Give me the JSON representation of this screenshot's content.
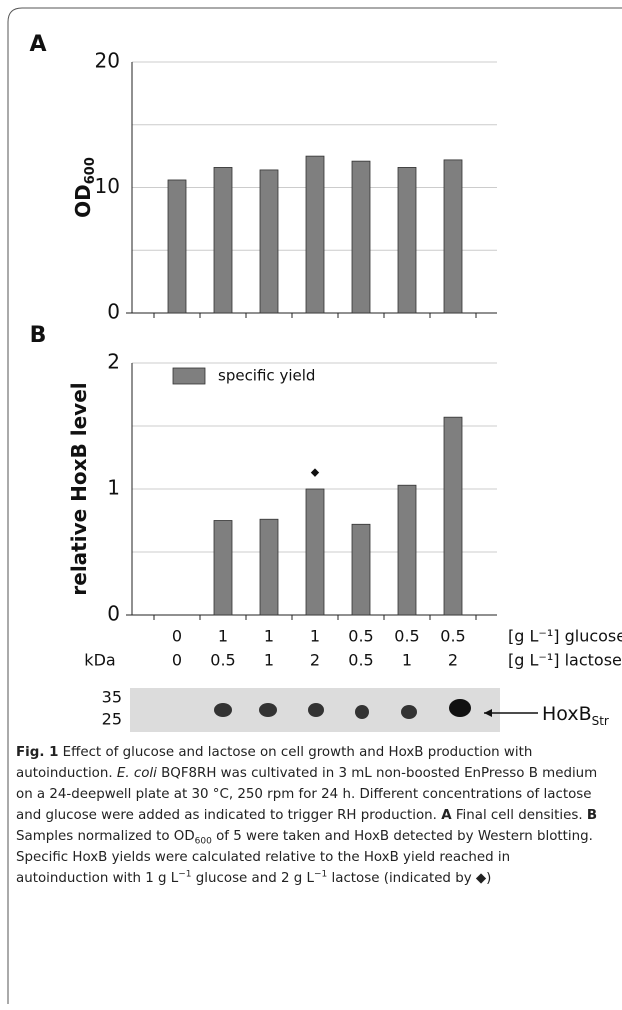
{
  "chart_data": [
    {
      "type": "bar",
      "panel_label": "A",
      "ylabel": "OD",
      "ylabel_sub": "600",
      "values": [
        10.6,
        11.6,
        11.4,
        12.5,
        12.1,
        11.6,
        12.2
      ],
      "color": "#7f7f7f",
      "ylim": [
        0,
        20
      ],
      "yticks": [
        0,
        10,
        20
      ],
      "minor_yticks": [
        5,
        15
      ],
      "grid": true
    },
    {
      "type": "bar",
      "panel_label": "B",
      "ylabel": "relative HoxB level",
      "series": [
        {
          "name": "specific yield",
          "color": "#7f7f7f",
          "values": [
            0,
            0.75,
            0.76,
            1.0,
            0.72,
            1.03,
            1.57
          ]
        }
      ],
      "ylim": [
        0,
        2
      ],
      "yticks": [
        0,
        1,
        2
      ],
      "minor_yticks": [
        0.5,
        1.5
      ],
      "grid": true,
      "legend": "top-left",
      "annotations": [
        {
          "text": "◆",
          "category_index": 3,
          "y": 1.13
        }
      ]
    }
  ],
  "conditions": {
    "rows": [
      {
        "values": [
          "0",
          "1",
          "1",
          "1",
          "0.5",
          "0.5",
          "0.5"
        ],
        "label": "[g L⁻¹] glucose"
      },
      {
        "values": [
          "0",
          "0.5",
          "1",
          "2",
          "0.5",
          "1",
          "2"
        ],
        "label": "[g L⁻¹] lactose"
      }
    ],
    "blot_unit": "kDa",
    "blot_markers": [
      "35",
      "25"
    ],
    "blot_band": "HoxB",
    "blot_band_sub": "Str"
  },
  "caption": [
    {
      "text": "Fig. 1",
      "format": "bold"
    },
    {
      "text": "  Effect of glucose and lactose on cell growth and HoxB production with autoinduction. "
    },
    {
      "text": "E. coli",
      "format": "italic"
    },
    {
      "text": " BQF8RH was cultivated in 3 mL non-boosted EnPresso B medium on a 24-deepwell plate at 30 °C, 250 rpm for 24 h. Different concentrations of lactose and glucose were added as indicated to trigger RH production. "
    },
    {
      "text": "A",
      "format": "bold"
    },
    {
      "text": " Final cell densities. "
    },
    {
      "text": "B",
      "format": "bold"
    },
    {
      "text": " Samples normalized to OD"
    },
    {
      "text": "600",
      "format": "sub"
    },
    {
      "text": " of 5 were taken and HoxB detected by Western blotting. Specific HoxB yields were calculated relative to the HoxB yield reached in autoinduction with 1 g L"
    },
    {
      "text": "−1",
      "format": "sup"
    },
    {
      "text": " glucose and 2 g L"
    },
    {
      "text": "−1",
      "format": "sup"
    },
    {
      "text": " lactose (indicated by ◆)"
    }
  ]
}
